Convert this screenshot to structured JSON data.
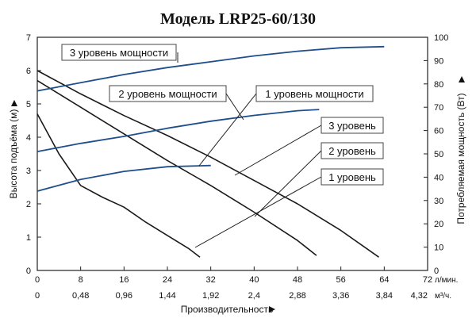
{
  "chart_data": {
    "type": "line",
    "title": "Модель LRP25-60/130",
    "xlabel": "Производительность",
    "ylabel_left": "Высота подъёма (м)",
    "ylabel_right": "Потребляемая мощность (Вт)",
    "xlim": [
      0,
      72
    ],
    "ylim_left": [
      0,
      7
    ],
    "ylim_right": [
      0,
      100
    ],
    "x_ticks": [
      "0",
      "8",
      "16",
      "24",
      "32",
      "40",
      "48",
      "56",
      "64",
      "72"
    ],
    "x_unit": "л/мин.",
    "x2_ticks": [
      "0",
      "0,48",
      "0,96",
      "1,44",
      "1,92",
      "2,4",
      "2,88",
      "3,36",
      "3,84",
      "4,32"
    ],
    "x2_unit": "м³/ч.",
    "y_left_ticks": [
      "0",
      "1",
      "2",
      "3",
      "4",
      "5",
      "6",
      "7"
    ],
    "y_right_ticks": [
      "0",
      "10",
      "20",
      "30",
      "40",
      "50",
      "60",
      "70",
      "80",
      "90",
      "100"
    ],
    "grid": false,
    "colors": {
      "head": "#1a1a1a",
      "power": "#1f4e8c"
    },
    "series": [
      {
        "name": "1 уровень",
        "kind": "head",
        "axis": "left",
        "x": [
          0,
          4,
          8,
          12,
          16,
          20,
          24,
          28,
          30
        ],
        "y": [
          4.7,
          3.5,
          2.55,
          2.2,
          1.9,
          1.45,
          1.05,
          0.65,
          0.4
        ]
      },
      {
        "name": "2 уровень",
        "kind": "head",
        "axis": "left",
        "x": [
          0,
          8,
          16,
          24,
          32,
          40,
          48,
          51.5
        ],
        "y": [
          5.7,
          4.9,
          4.1,
          3.3,
          2.55,
          1.75,
          0.9,
          0.45
        ]
      },
      {
        "name": "3 уровень",
        "kind": "head",
        "axis": "left",
        "x": [
          0,
          8,
          16,
          24,
          32,
          40,
          48,
          56,
          63
        ],
        "y": [
          6.0,
          5.3,
          4.65,
          4.05,
          3.4,
          2.7,
          2.0,
          1.2,
          0.4
        ]
      },
      {
        "name": "1 уровень мощности",
        "kind": "power",
        "axis": "right",
        "x": [
          0,
          8,
          16,
          24,
          32
        ],
        "y": [
          34,
          39,
          42.5,
          44.5,
          45
        ]
      },
      {
        "name": "2 уровень мощности",
        "kind": "power",
        "axis": "right",
        "x": [
          0,
          8,
          16,
          24,
          32,
          40,
          48,
          52
        ],
        "y": [
          51,
          54.5,
          57.5,
          61,
          64,
          66.5,
          68.5,
          69
        ]
      },
      {
        "name": "3 уровень мощности",
        "kind": "power",
        "axis": "right",
        "x": [
          0,
          8,
          16,
          24,
          32,
          40,
          48,
          56,
          64
        ],
        "y": [
          77,
          80.5,
          84,
          87,
          89.5,
          92,
          94,
          95.5,
          96
        ]
      }
    ],
    "labels": [
      {
        "text": "3 уровень мощности",
        "series": "3 уровень мощности"
      },
      {
        "text": "2 уровень мощности",
        "series": "2 уровень мощности"
      },
      {
        "text": "1 уровень мощности",
        "series": "1 уровень мощности"
      },
      {
        "text": "3 уровень",
        "series": "3 уровень"
      },
      {
        "text": "2 уровень",
        "series": "2 уровень"
      },
      {
        "text": "1 уровень",
        "series": "1 уровень"
      }
    ]
  }
}
